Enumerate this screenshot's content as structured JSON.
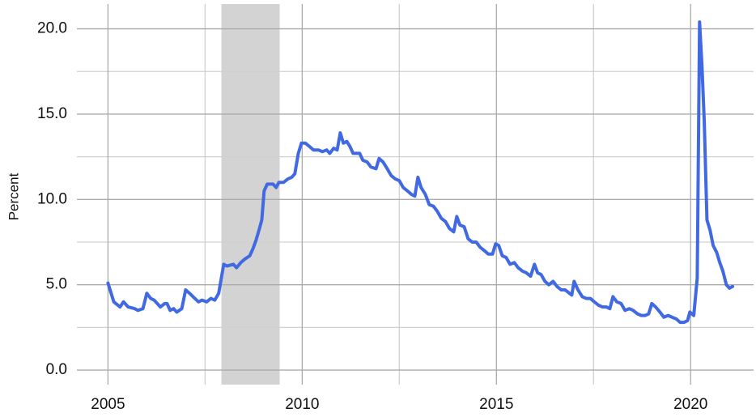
{
  "chart_data": {
    "type": "line",
    "y_label": "Percent",
    "color": "#4169e1",
    "x": [
      2005.0,
      2005.15,
      2005.31,
      2005.4,
      2005.52,
      2005.69,
      2005.77,
      2005.9,
      2006.0,
      2006.1,
      2006.19,
      2006.35,
      2006.46,
      2006.52,
      2006.6,
      2006.69,
      2006.77,
      2006.9,
      2007.0,
      2007.1,
      2007.19,
      2007.33,
      2007.42,
      2007.54,
      2007.65,
      2007.75,
      2007.85,
      2007.98,
      2008.06,
      2008.23,
      2008.31,
      2008.42,
      2008.52,
      2008.65,
      2008.73,
      2008.81,
      2008.9,
      2008.96,
      2009.02,
      2009.1,
      2009.25,
      2009.33,
      2009.4,
      2009.52,
      2009.63,
      2009.73,
      2009.81,
      2009.9,
      2009.98,
      2010.08,
      2010.19,
      2010.29,
      2010.42,
      2010.52,
      2010.63,
      2010.71,
      2010.81,
      2010.9,
      2010.98,
      2011.06,
      2011.15,
      2011.23,
      2011.31,
      2011.48,
      2011.56,
      2011.67,
      2011.77,
      2011.9,
      2011.98,
      2012.08,
      2012.19,
      2012.29,
      2012.4,
      2012.5,
      2012.6,
      2012.71,
      2012.81,
      2012.9,
      2012.98,
      2013.06,
      2013.17,
      2013.27,
      2013.38,
      2013.48,
      2013.58,
      2013.69,
      2013.79,
      2013.9,
      2013.98,
      2014.06,
      2014.17,
      2014.27,
      2014.38,
      2014.48,
      2014.58,
      2014.69,
      2014.79,
      2014.9,
      2014.98,
      2015.06,
      2015.15,
      2015.25,
      2015.35,
      2015.46,
      2015.56,
      2015.67,
      2015.77,
      2015.88,
      2015.98,
      2016.06,
      2016.15,
      2016.25,
      2016.35,
      2016.46,
      2016.56,
      2016.67,
      2016.77,
      2016.88,
      2016.94,
      2017.0,
      2017.1,
      2017.21,
      2017.31,
      2017.42,
      2017.52,
      2017.63,
      2017.73,
      2017.83,
      2017.92,
      2018.0,
      2018.1,
      2018.21,
      2018.31,
      2018.42,
      2018.52,
      2018.63,
      2018.73,
      2018.83,
      2018.92,
      2019.0,
      2019.1,
      2019.21,
      2019.31,
      2019.42,
      2019.52,
      2019.63,
      2019.73,
      2019.83,
      2019.92,
      2019.98,
      2020.08,
      2020.17,
      2020.23,
      2020.29,
      2020.35,
      2020.42,
      2020.5,
      2020.58,
      2020.67,
      2020.75,
      2020.83,
      2020.92,
      2021.0,
      2021.08
    ],
    "values": [
      5.1,
      4.0,
      3.7,
      4.0,
      3.7,
      3.6,
      3.5,
      3.6,
      4.5,
      4.2,
      4.1,
      3.7,
      3.9,
      3.9,
      3.5,
      3.6,
      3.4,
      3.6,
      4.7,
      4.5,
      4.3,
      4.0,
      4.1,
      4.0,
      4.2,
      4.1,
      4.5,
      6.2,
      6.1,
      6.2,
      6.0,
      6.3,
      6.5,
      6.7,
      7.1,
      7.6,
      8.3,
      8.8,
      10.5,
      10.9,
      10.9,
      10.7,
      11.0,
      11.0,
      11.2,
      11.3,
      11.5,
      12.7,
      13.3,
      13.3,
      13.1,
      12.9,
      12.9,
      12.8,
      12.9,
      12.7,
      13.0,
      12.9,
      13.9,
      13.3,
      13.4,
      13.1,
      12.7,
      12.7,
      12.3,
      12.2,
      11.9,
      11.8,
      12.4,
      12.2,
      11.8,
      11.4,
      11.2,
      11.1,
      10.7,
      10.5,
      10.3,
      10.2,
      11.3,
      10.7,
      10.3,
      9.7,
      9.6,
      9.3,
      8.9,
      8.7,
      8.3,
      8.1,
      9.0,
      8.5,
      8.4,
      7.7,
      7.5,
      7.5,
      7.2,
      7.0,
      6.8,
      6.8,
      7.4,
      7.3,
      6.7,
      6.6,
      6.2,
      6.3,
      6.0,
      5.8,
      5.7,
      5.5,
      6.2,
      5.7,
      5.6,
      5.2,
      5.0,
      5.2,
      4.9,
      4.7,
      4.7,
      4.5,
      4.4,
      5.2,
      4.7,
      4.3,
      4.2,
      4.2,
      4.0,
      3.8,
      3.7,
      3.7,
      3.6,
      4.3,
      4.0,
      3.9,
      3.5,
      3.6,
      3.5,
      3.3,
      3.2,
      3.2,
      3.3,
      3.9,
      3.7,
      3.4,
      3.1,
      3.2,
      3.1,
      3.0,
      2.8,
      2.8,
      2.9,
      3.4,
      3.2,
      5.4,
      20.4,
      17.9,
      14.6,
      8.8,
      8.2,
      7.3,
      6.9,
      6.3,
      5.8,
      5.0,
      4.8,
      4.9
    ],
    "xlim": [
      2004.2,
      2021.62
    ],
    "ylim": [
      -0.85,
      21.45
    ],
    "xticks": [
      2005,
      2010,
      2015,
      2020
    ],
    "x_minor_ticks": [
      2007.5,
      2012.5,
      2017.5
    ],
    "yticks": [
      {
        "value": 0,
        "label": "0.0"
      },
      {
        "value": 5,
        "label": "5.0"
      },
      {
        "value": 10,
        "label": "10.0"
      },
      {
        "value": 15,
        "label": "15.0"
      },
      {
        "value": 20,
        "label": "20.0"
      }
    ],
    "y_minor_ticks": [
      2.5,
      7.5,
      12.5,
      17.5
    ],
    "shaded_regions": [
      [
        2007.92,
        2009.42
      ]
    ],
    "shade_color": "#d3d3d3",
    "grid": true
  }
}
